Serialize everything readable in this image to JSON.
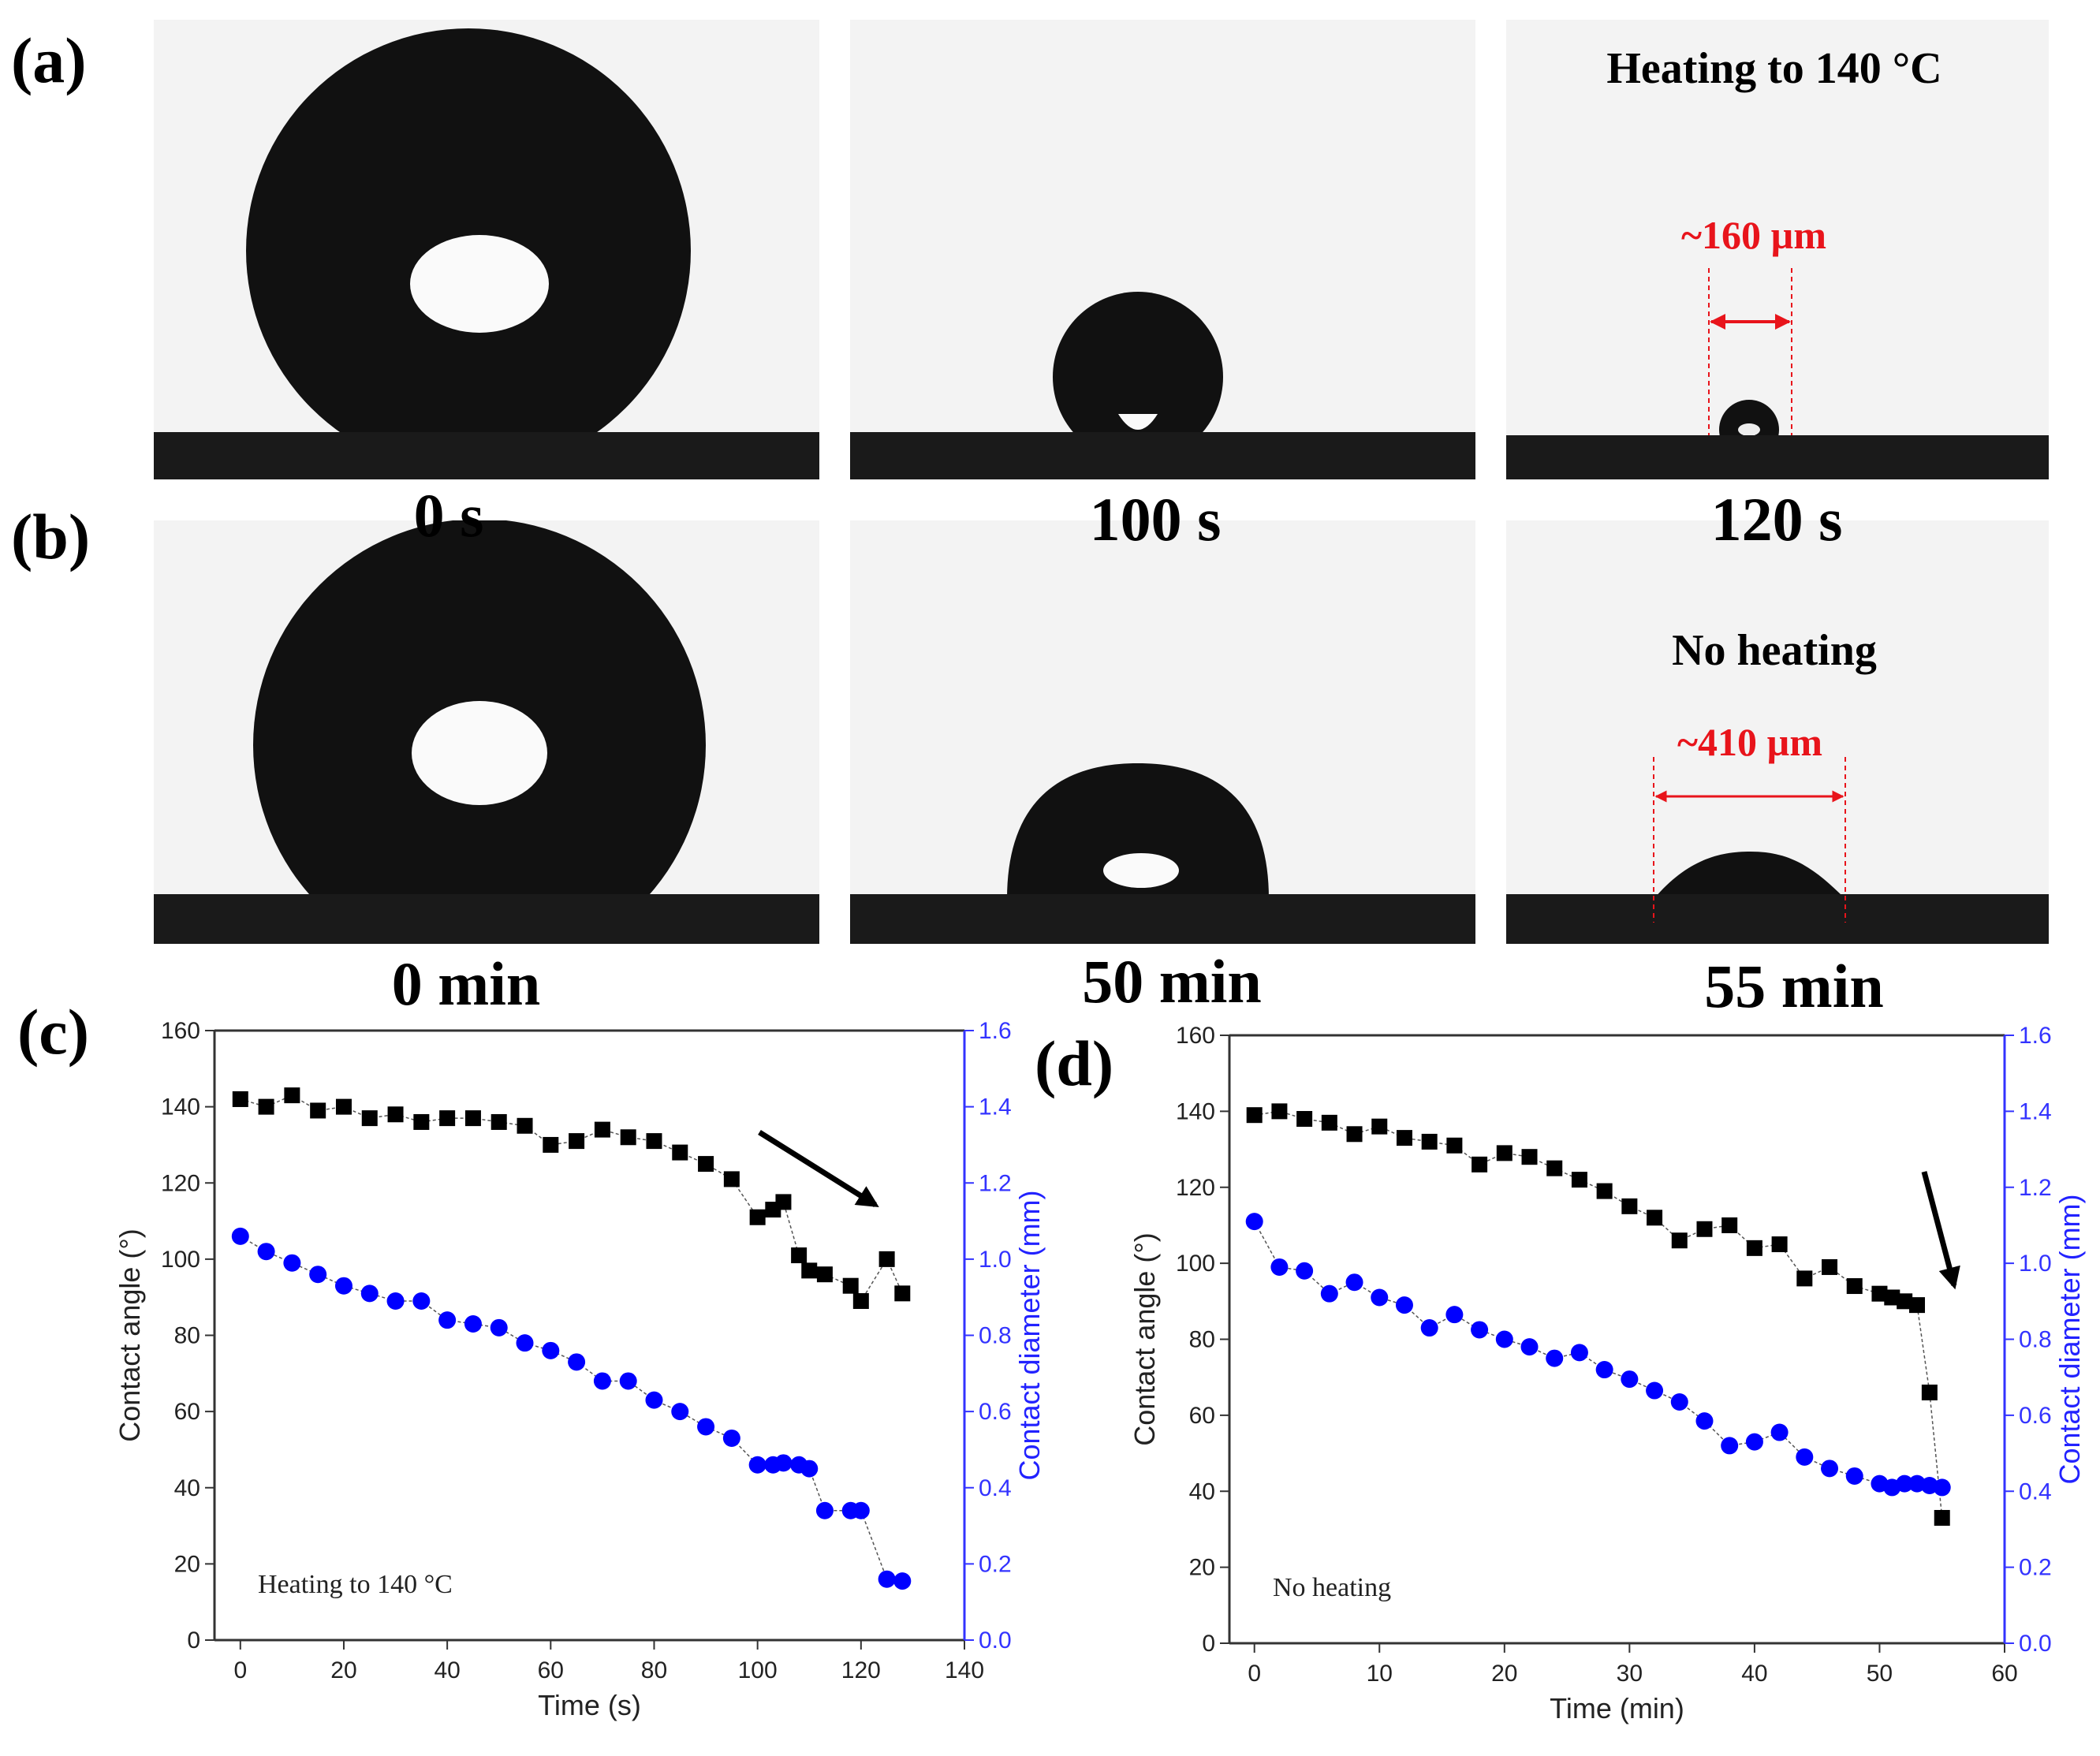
{
  "panels": {
    "a": {
      "letter": "(a)",
      "labels": [
        "0 s",
        "100 s",
        "120 s"
      ],
      "condition": "Heating to 140 °C",
      "measure": "~160 µm"
    },
    "b": {
      "letter": "(b)",
      "labels": [
        "0 min",
        "50 min",
        "55 min"
      ],
      "condition": "No heating",
      "measure": "~410 µm"
    },
    "c": {
      "letter": "(c)"
    },
    "d": {
      "letter": "(d)"
    }
  },
  "colors": {
    "angle": "#000000",
    "diameter": "#0000ff",
    "measure": "#e8141b"
  },
  "chart_data": [
    {
      "type": "scatter",
      "panel": "c",
      "xlabel": "Time (s)",
      "ylabel": "Contact angle (°)",
      "y2label": "Contact diameter (mm)",
      "annotation": "Heating to 140 °C",
      "xlim": [
        -5,
        140
      ],
      "xticks": [
        0,
        20,
        40,
        60,
        80,
        100,
        120,
        140
      ],
      "ylim": [
        0,
        160
      ],
      "yticks": [
        0,
        20,
        40,
        60,
        80,
        100,
        120,
        140,
        160
      ],
      "y2lim": [
        0,
        1.6
      ],
      "y2ticks": [
        "0.0",
        "0.2",
        "0.4",
        "0.6",
        "0.8",
        "1.0",
        "1.2",
        "1.4",
        "1.6"
      ],
      "series": [
        {
          "name": "Contact angle",
          "axis": "left",
          "marker": "square",
          "x": [
            0,
            5,
            10,
            15,
            20,
            25,
            30,
            35,
            40,
            45,
            50,
            55,
            60,
            65,
            70,
            75,
            80,
            85,
            90,
            95,
            100,
            103,
            105,
            108,
            110,
            113,
            118,
            120,
            125,
            128
          ],
          "y": [
            142,
            140,
            143,
            139,
            140,
            137,
            138,
            136,
            137,
            137,
            136,
            135,
            130,
            131,
            134,
            132,
            131,
            128,
            125,
            121,
            111,
            113,
            115,
            101,
            97,
            96,
            93,
            89,
            100,
            91
          ]
        },
        {
          "name": "Contact diameter",
          "axis": "right",
          "marker": "circle",
          "x": [
            0,
            5,
            10,
            15,
            20,
            25,
            30,
            35,
            40,
            45,
            50,
            55,
            60,
            65,
            70,
            75,
            80,
            85,
            90,
            95,
            100,
            103,
            105,
            108,
            110,
            113,
            118,
            120,
            125,
            128
          ],
          "y": [
            1.06,
            1.02,
            0.99,
            0.96,
            0.93,
            0.91,
            0.89,
            0.89,
            0.84,
            0.83,
            0.82,
            0.78,
            0.76,
            0.73,
            0.68,
            0.68,
            0.63,
            0.6,
            0.56,
            0.53,
            0.46,
            0.46,
            0.465,
            0.46,
            0.45,
            0.34,
            0.34,
            0.34,
            0.16,
            0.155
          ]
        }
      ]
    },
    {
      "type": "scatter",
      "panel": "d",
      "xlabel": "Time (min)",
      "ylabel": "Contact angle (°)",
      "y2label": "Contact diameter (mm)",
      "annotation": "No heating",
      "xlim": [
        -2,
        60
      ],
      "xticks": [
        0,
        10,
        20,
        30,
        40,
        50,
        60
      ],
      "ylim": [
        0,
        160
      ],
      "yticks": [
        0,
        20,
        40,
        60,
        80,
        100,
        120,
        140,
        160
      ],
      "y2lim": [
        0,
        1.6
      ],
      "y2ticks": [
        "0.0",
        "0.2",
        "0.4",
        "0.6",
        "0.8",
        "1.0",
        "1.2",
        "1.4",
        "1.6"
      ],
      "series": [
        {
          "name": "Contact angle",
          "axis": "left",
          "marker": "square",
          "x": [
            0,
            2,
            4,
            6,
            8,
            10,
            12,
            14,
            16,
            18,
            20,
            22,
            24,
            26,
            28,
            30,
            32,
            34,
            36,
            38,
            40,
            42,
            44,
            46,
            48,
            50,
            51,
            52,
            53,
            54,
            55
          ],
          "y": [
            139,
            140,
            138,
            137,
            134,
            136,
            133,
            132,
            131,
            126,
            129,
            128,
            125,
            122,
            119,
            115,
            112,
            106,
            109,
            110,
            104,
            105,
            96,
            99,
            94,
            92,
            91,
            90,
            89,
            66,
            33
          ]
        },
        {
          "name": "Contact diameter",
          "axis": "right",
          "marker": "circle",
          "x": [
            0,
            2,
            4,
            6,
            8,
            10,
            12,
            14,
            16,
            18,
            20,
            22,
            24,
            26,
            28,
            30,
            32,
            34,
            36,
            38,
            40,
            42,
            44,
            46,
            48,
            50,
            51,
            52,
            53,
            54,
            55
          ],
          "y": [
            1.11,
            0.99,
            0.98,
            0.92,
            0.95,
            0.91,
            0.89,
            0.83,
            0.865,
            0.825,
            0.8,
            0.78,
            0.75,
            0.765,
            0.72,
            0.695,
            0.665,
            0.635,
            0.585,
            0.52,
            0.53,
            0.555,
            0.49,
            0.46,
            0.44,
            0.42,
            0.41,
            0.42,
            0.42,
            0.415,
            0.41
          ]
        }
      ]
    }
  ]
}
